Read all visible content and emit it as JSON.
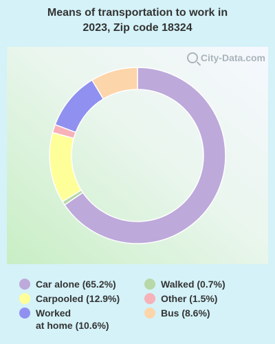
{
  "chart_data": {
    "type": "pie",
    "title_lines": [
      "Means of transportation to work in",
      "2023, Zip code 18324"
    ],
    "watermark": "City-Data.com",
    "series": [
      {
        "name": "Car alone",
        "value": 65.2,
        "color": "#bda9da",
        "legend": "Car alone (65.2%)"
      },
      {
        "name": "Walked",
        "value": 0.7,
        "color": "#b8d8a8",
        "legend": "Walked (0.7%)"
      },
      {
        "name": "Carpooled",
        "value": 12.9,
        "color": "#ffff99",
        "legend": "Carpooled (12.9%)"
      },
      {
        "name": "Other",
        "value": 1.5,
        "color": "#f7b1b8",
        "legend": "Other (1.5%)"
      },
      {
        "name": "Worked at home",
        "value": 10.6,
        "color": "#9090f0",
        "legend": "Worked\nat home (10.6%)"
      },
      {
        "name": "Bus",
        "value": 8.6,
        "color": "#fdd5aa",
        "legend": "Bus (8.6%)"
      }
    ],
    "legend_placement": "bottom"
  }
}
